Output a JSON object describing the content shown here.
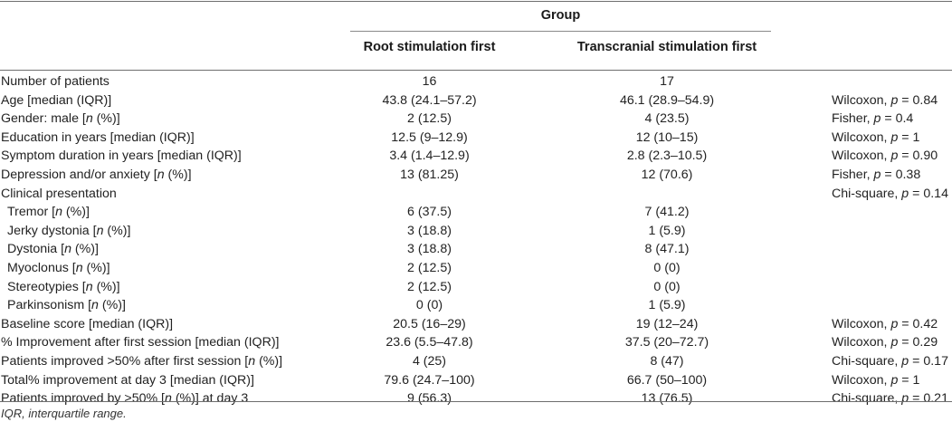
{
  "table": {
    "group_title": "Group",
    "columns": [
      "Root stimulation first",
      "Transcranial stimulation first"
    ],
    "rows": [
      {
        "label": "Number of patients",
        "root": "16",
        "trans": "17",
        "test": ""
      },
      {
        "label": "Age [median (IQR)]",
        "root": "43.8 (24.1–57.2)",
        "trans": "46.1 (28.9–54.9)",
        "test": "Wilcoxon, p = 0.84"
      },
      {
        "label": "Gender: male [n (%)]",
        "root": "2 (12.5)",
        "trans": "4 (23.5)",
        "test": "Fisher, p = 0.4"
      },
      {
        "label": "Education in years [median (IQR)]",
        "root": "12.5 (9–12.9)",
        "trans": "12 (10–15)",
        "test": "Wilcoxon, p = 1"
      },
      {
        "label": "Symptom duration in years [median (IQR)]",
        "root": "3.4 (1.4–12.9)",
        "trans": "2.8 (2.3–10.5)",
        "test": "Wilcoxon, p = 0.90"
      },
      {
        "label": "Depression and/or anxiety [n (%)]",
        "root": "13 (81.25)",
        "trans": "12 (70.6)",
        "test": "Fisher, p = 0.38"
      },
      {
        "label": "Clinical presentation",
        "root": "",
        "trans": "",
        "test": "Chi-square, p = 0.14"
      },
      {
        "label": "Tremor [n (%)]",
        "root": "6 (37.5)",
        "trans": "7 (41.2)",
        "test": ""
      },
      {
        "label": "Jerky dystonia [n (%)]",
        "root": "3 (18.8)",
        "trans": "1 (5.9)",
        "test": ""
      },
      {
        "label": "Dystonia [n (%)]",
        "root": "3 (18.8)",
        "trans": "8 (47.1)",
        "test": ""
      },
      {
        "label": "Myoclonus [n (%)]",
        "root": "2 (12.5)",
        "trans": "0 (0)",
        "test": ""
      },
      {
        "label": "Stereotypies [n (%)]",
        "root": "2 (12.5)",
        "trans": "0 (0)",
        "test": ""
      },
      {
        "label": "Parkinsonism [n (%)]",
        "root": "0 (0)",
        "trans": "1 (5.9)",
        "test": ""
      },
      {
        "label": "Baseline score [median (IQR)]",
        "root": "20.5 (16–29)",
        "trans": "19 (12–24)",
        "test": "Wilcoxon, p = 0.42"
      },
      {
        "label": "% Improvement after first session [median (IQR)]",
        "root": "23.6 (5.5–47.8)",
        "trans": "37.5 (20–72.7)",
        "test": "Wilcoxon, p = 0.29"
      },
      {
        "label": "Patients improved >50% after first session [n (%)]",
        "root": "4 (25)",
        "trans": "8 (47)",
        "test": "Chi-square, p = 0.17"
      },
      {
        "label": "Total% improvement at day 3 [median (IQR)]",
        "root": "79.6 (24.7–100)",
        "trans": "66.7 (50–100)",
        "test": "Wilcoxon, p = 1"
      },
      {
        "label": "Patients improved by >50% [n (%)] at day 3",
        "root": "9 (56.3)",
        "trans": "13 (76.5)",
        "test": "Chi-square, p = 0.21"
      }
    ],
    "footnote": "IQR, interquartile range."
  }
}
